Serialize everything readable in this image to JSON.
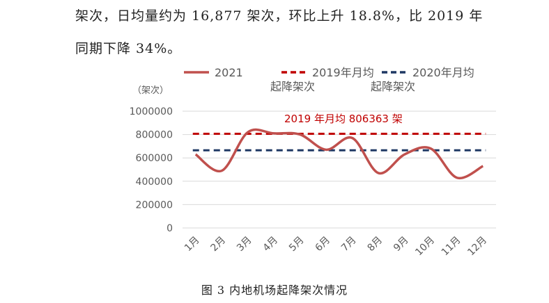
{
  "text": {
    "line1": "架次，日均量约为 16,877 架次，环比上升 18.8%，比 2019 年",
    "line2": "同期下降 34%。",
    "caption": "图 3  内地机场起降架次情况"
  },
  "colors": {
    "series_2021": "#c0504d",
    "avg_2019": "#c00000",
    "avg_2020": "#1f3864",
    "grid": "#d9d9d9",
    "axis_text": "#595959"
  },
  "chart_data": {
    "type": "line",
    "ylabel": "（架次）",
    "ylim": [
      0,
      1000000
    ],
    "yticks": [
      "1000000",
      "800000",
      "600000",
      "400000",
      "200000",
      "0"
    ],
    "categories": [
      "1月",
      "2月",
      "3月",
      "4月",
      "5月",
      "6月",
      "7月",
      "8月",
      "9月",
      "10月",
      "11月",
      "12月"
    ],
    "series": [
      {
        "name": "2021",
        "values": [
          630000,
          490000,
          820000,
          810000,
          800000,
          670000,
          770000,
          470000,
          630000,
          680000,
          430000,
          530000
        ]
      }
    ],
    "reference_lines": [
      {
        "name": "2019年月均起降架次",
        "value": 806363
      },
      {
        "name": "2020年月均起降架次",
        "value": 665000
      }
    ],
    "annotation": "2019 年月均 806363 架",
    "legend": [
      {
        "label_l1": "2021",
        "label_l2": ""
      },
      {
        "label_l1": "2019年月均",
        "label_l2": "起降架次"
      },
      {
        "label_l1": "2020年月均",
        "label_l2": "起降架次"
      }
    ],
    "grid": true,
    "legend_position": "top"
  }
}
